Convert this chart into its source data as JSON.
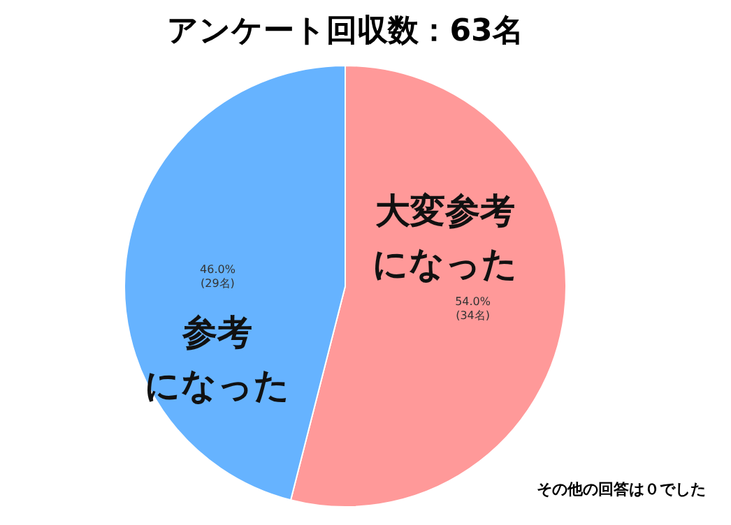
{
  "chart_data": {
    "type": "pie",
    "title": "アンケート回収数：63名",
    "categories": [
      "大変参考になった",
      "参考になった"
    ],
    "values": [
      34,
      29
    ],
    "colors": [
      "#ff9999",
      "#66b3ff"
    ],
    "value_labels": [
      "54.0%\n(34名)",
      "46.0%\n(29名)"
    ],
    "annotations": [
      "その他の回答は０でした"
    ]
  }
}
